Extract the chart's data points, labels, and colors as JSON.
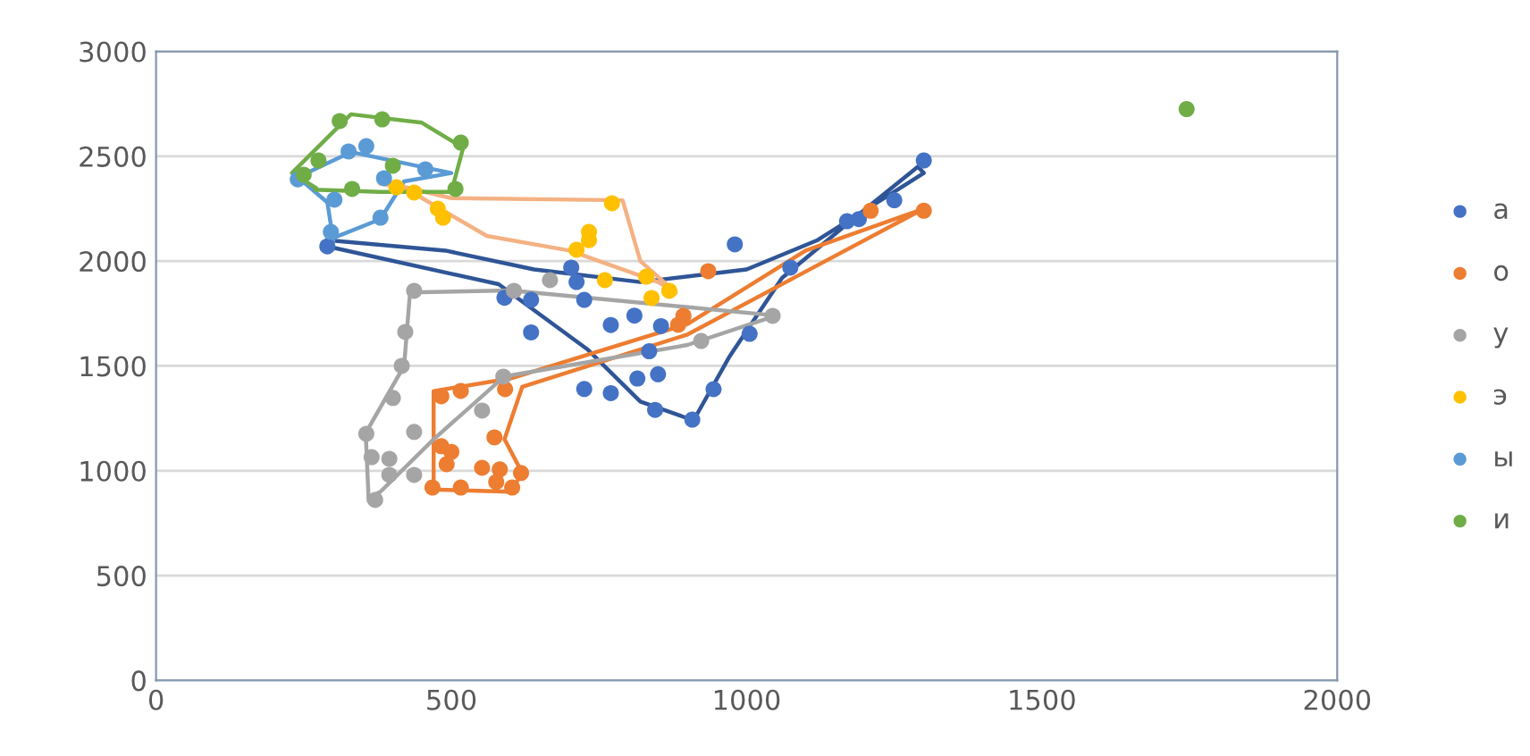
{
  "chart_data": {
    "type": "scatter",
    "xlim": [
      0,
      2000
    ],
    "ylim": [
      0,
      3000
    ],
    "xticks": [
      0,
      500,
      1000,
      1500,
      2000
    ],
    "yticks": [
      0,
      500,
      1000,
      1500,
      2000,
      2500,
      3000
    ],
    "grid": "y",
    "legend": "right",
    "marker": "circle",
    "series": [
      {
        "name": "а",
        "color": "#4472c4",
        "x": [
          290,
          590,
          635,
          725,
          635,
          770,
          810,
          855,
          835,
          815,
          850,
          725,
          770,
          845,
          908,
          944,
          1005,
          980,
          1074,
          703,
          712,
          824,
          1170,
          1190,
          1250,
          1300
        ],
        "values": [
          2070,
          1825,
          1815,
          1815,
          1660,
          1695,
          1740,
          1690,
          1570,
          1440,
          1460,
          1390,
          1370,
          1290,
          1244,
          1389,
          1653,
          2080,
          1969,
          1969,
          1900,
          null,
          2190,
          2200,
          2290,
          2480
        ]
      },
      {
        "name": "о",
        "color": "#ed7d31",
        "x": [
          483,
          516,
          591,
          483,
          500,
          492,
          573,
          552,
          582,
          618,
          468,
          516,
          576,
          603,
          884,
          893,
          935,
          1210,
          1300
        ],
        "values": [
          1355,
          1381,
          1389,
          1117,
          1090,
          1031,
          1159,
          1014,
          1006,
          989,
          920,
          920,
          946,
          920,
          1696,
          1739,
          1952,
          2240,
          2240
        ]
      },
      {
        "name": "у",
        "color": "#a5a5a5",
        "x": [
          437,
          606,
          667,
          422,
          416,
          401,
          356,
          437,
          552,
          365,
          395,
          395,
          437,
          371,
          588,
          923,
          1044
        ],
        "values": [
          1858,
          1858,
          1909,
          1662,
          1500,
          1347,
          1176,
          1185,
          1287,
          1065,
          1057,
          980,
          980,
          861,
          1449,
          1619,
          1739
        ]
      },
      {
        "name": "э",
        "color": "#ffc000",
        "x": [
          407,
          437,
          477,
          486,
          772,
          733,
          733,
          712,
          760,
          830,
          839,
          869
        ],
        "values": [
          2352,
          2327,
          2250,
          2207,
          2276,
          2139,
          2100,
          2054,
          1909,
          1926,
          1824,
          1858
        ]
      },
      {
        "name": "ы",
        "color": "#5b9bd5",
        "x": [
          326,
          356,
          456,
          386,
          302,
          380,
          296,
          240
        ],
        "values": [
          2523,
          2548,
          2438,
          2395,
          2293,
          2207,
          2139,
          2390
        ]
      },
      {
        "name": "и",
        "color": "#70ad47",
        "x": [
          311,
          383,
          516,
          275,
          250,
          332,
          401,
          507,
          1745
        ],
        "values": [
          2668,
          2676,
          2565,
          2480,
          2412,
          2344,
          2455,
          2344,
          2725
        ]
      },
      {
        "type": "line",
        "marker": "none",
        "color": "#2f5597",
        "x": [
          290,
          490,
          640,
          820,
          1000,
          1120,
          1300,
          1290,
          1180,
          1060,
          970,
          910,
          820,
          730,
          580,
          290
        ],
        "values": [
          2100,
          2050,
          1960,
          1900,
          1960,
          2100,
          2420,
          2450,
          2200,
          1920,
          1540,
          1240,
          1330,
          1580,
          1890,
          2070
        ]
      },
      {
        "type": "line",
        "marker": "none",
        "color": "#ed7d31",
        "x": [
          470,
          470,
          600,
          900,
          1100,
          1300,
          1100,
          900,
          620,
          590,
          620,
          600,
          470
        ],
        "values": [
          920,
          1380,
          1440,
          1700,
          2050,
          2250,
          1950,
          1650,
          1400,
          1150,
          990,
          900,
          910
        ]
      },
      {
        "type": "line",
        "marker": "none",
        "color": "#f4b183",
        "x": [
          380,
          500,
          790,
          820,
          880,
          850,
          700,
          560,
          420,
          380
        ],
        "values": [
          2380,
          2300,
          2290,
          2000,
          1850,
          1900,
          2050,
          2120,
          2350,
          2370
        ]
      },
      {
        "type": "line",
        "marker": "none",
        "color": "#a5a5a5",
        "x": [
          360,
          355,
          420,
          430,
          600,
          1050,
          900,
          590,
          470,
          380,
          360
        ],
        "values": [
          860,
          1180,
          1500,
          1850,
          1860,
          1740,
          1600,
          1450,
          1150,
          900,
          870
        ]
      },
      {
        "type": "line",
        "marker": "none",
        "color": "#5b9bd5",
        "x": [
          300,
          290,
          240,
          330,
          500,
          420,
          380,
          300
        ],
        "values": [
          2100,
          2280,
          2400,
          2520,
          2420,
          2380,
          2200,
          2110
        ]
      },
      {
        "type": "line",
        "marker": "none",
        "color": "#70ad47",
        "x": [
          270,
          230,
          330,
          450,
          520,
          500,
          380,
          270
        ],
        "values": [
          2350,
          2420,
          2700,
          2660,
          2540,
          2330,
          2330,
          2340
        ]
      }
    ]
  }
}
